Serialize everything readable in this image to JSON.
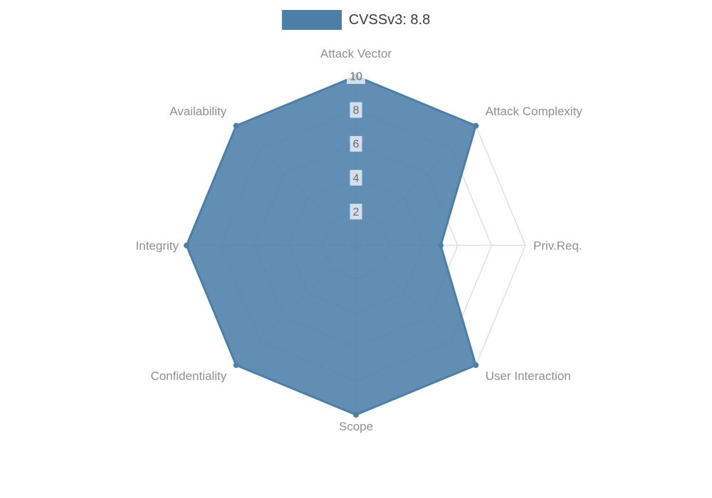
{
  "legend": {
    "label": "CVSSv3: 8.8",
    "swatch_color": "#4d7ea8"
  },
  "chart_data": {
    "type": "radar",
    "title": "CVSSv3: 8.8",
    "categories": [
      "Attack Vector",
      "Attack Complexity",
      "Priv.Req.",
      "User Interaction",
      "Scope",
      "Confidentiality",
      "Integrity",
      "Availability"
    ],
    "series": [
      {
        "name": "CVSSv3: 8.8",
        "color": "#4d7ea8",
        "fill_opacity": 0.88,
        "values": [
          10,
          10,
          5,
          10,
          10,
          10,
          10,
          10
        ]
      }
    ],
    "ticks": [
      2,
      4,
      6,
      8,
      10
    ],
    "rlim": [
      0,
      10
    ],
    "grid": true,
    "legend_position": "top",
    "colors": {
      "grid": "#d9d9d9",
      "axis_label": "#8f8f8f",
      "tick_text": "#696969",
      "tick_backdrop": "rgba(255,255,255,0.72)",
      "background": "#ffffff"
    }
  }
}
